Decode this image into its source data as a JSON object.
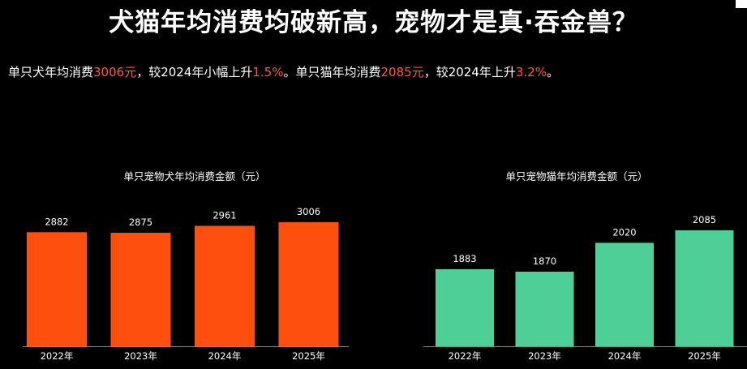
{
  "title": "犬猫年均消费均破新高，宠物才是真·吞金兽？",
  "summary": {
    "p1": "单只犬年均消费",
    "v1": "3006元",
    "p2": "，较2024年小幅上升",
    "v2": "1.5%",
    "p3": "。单只猫年均消费",
    "v3": "2085元",
    "p4": "，较2024年上升",
    "v4": "3.2%",
    "p5": "。"
  },
  "colors": {
    "highlight": "#ff5a3c",
    "dog_bar": "#ff4f0f",
    "cat_bar": "#4fcf98",
    "axis": "#8a8a8a",
    "text": "#ffffff"
  },
  "chart_data": [
    {
      "type": "bar",
      "title": "单只宠物犬年均消费金额（元）",
      "categories": [
        "2022年",
        "2023年",
        "2024年",
        "2025年"
      ],
      "values": [
        2882,
        2875,
        2961,
        3006
      ],
      "color": "#ff4f0f"
    },
    {
      "type": "bar",
      "title": "单只宠物猫年均消费金额（元）",
      "categories": [
        "2022年",
        "2023年",
        "2024年",
        "2025年"
      ],
      "values": [
        1883,
        1870,
        2020,
        2085
      ],
      "color": "#4fcf98"
    }
  ]
}
